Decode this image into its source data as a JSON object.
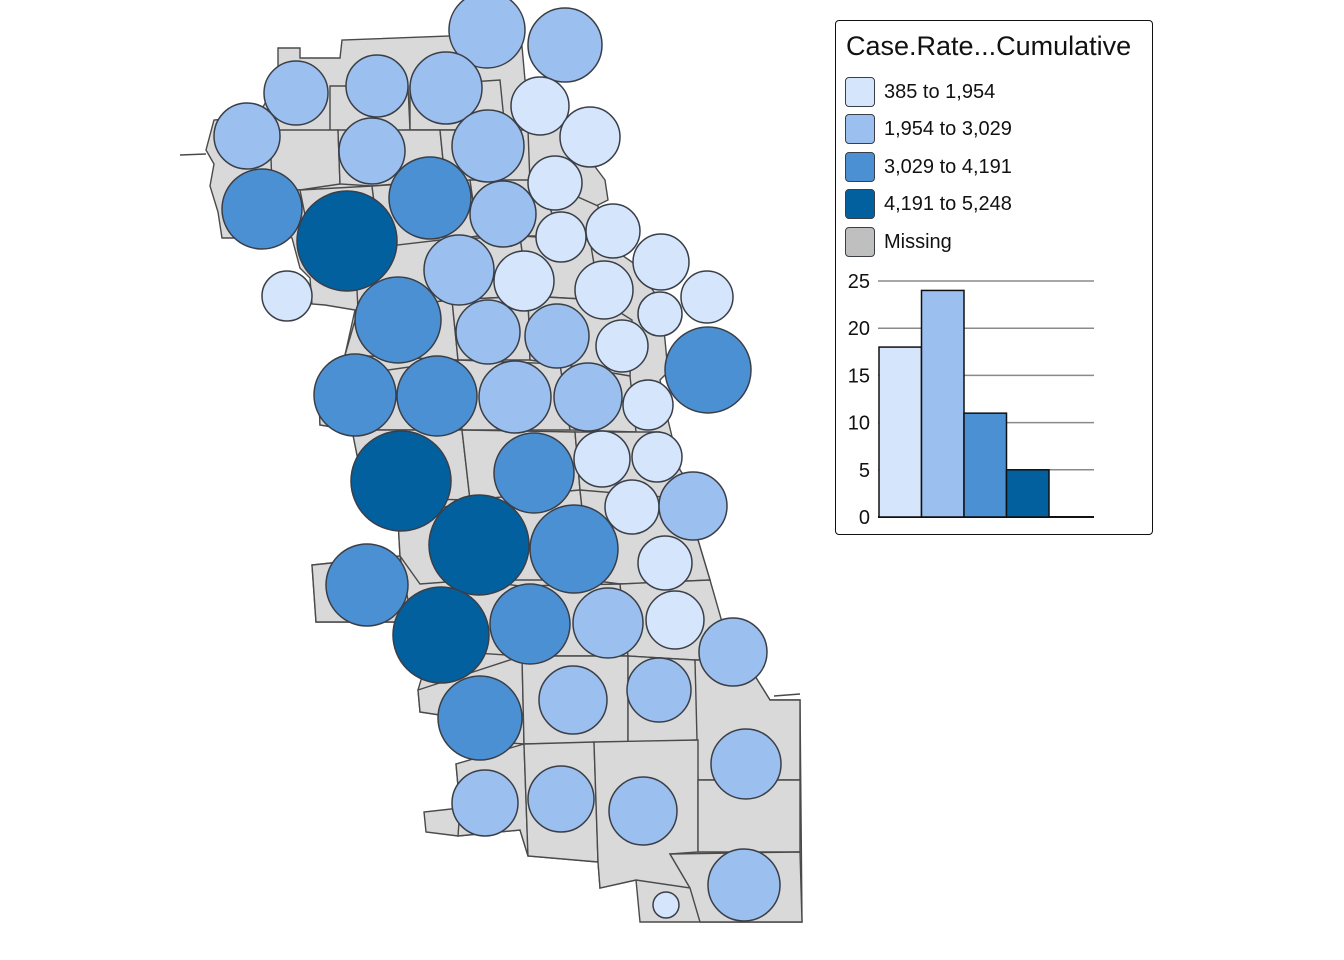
{
  "legend": {
    "title": "Case.Rate...Cumulative",
    "items": [
      {
        "label": "385 to 1,954",
        "color": "#d5e5fc"
      },
      {
        "label": "1,954 to 3,029",
        "color": "#9bbfee"
      },
      {
        "label": "3,029 to 4,191",
        "color": "#4c90d4"
      },
      {
        "label": "4,191 to 5,248",
        "color": "#03609f"
      },
      {
        "label": "Missing",
        "color": "#bfbfbf"
      }
    ]
  },
  "map": {
    "zone_fill": "#d9d9d9",
    "zone_stroke": "#4a4a4a",
    "bubble_stroke": "#3a3f47",
    "bubble_count": 58,
    "bubbles_by_class": [
      {
        "class": "385 to 1,954",
        "count": 18
      },
      {
        "class": "1,954 to 3,029",
        "count": 24
      },
      {
        "class": "3,029 to 4,191",
        "count": 11
      },
      {
        "class": "4,191 to 5,248",
        "count": 5
      }
    ]
  },
  "chart_data": {
    "type": "bar",
    "categories": [
      "385 to 1,954",
      "1,954 to 3,029",
      "3,029 to 4,191",
      "4,191 to 5,248",
      "Missing"
    ],
    "values": [
      18,
      24,
      11,
      5,
      0
    ],
    "colors": [
      "#d5e5fc",
      "#9bbfee",
      "#4c90d4",
      "#03609f",
      "#bfbfbf"
    ],
    "y_ticks": [
      "0",
      "5",
      "10",
      "15",
      "20",
      "25"
    ],
    "ylim": [
      0,
      25
    ],
    "grid": true
  }
}
